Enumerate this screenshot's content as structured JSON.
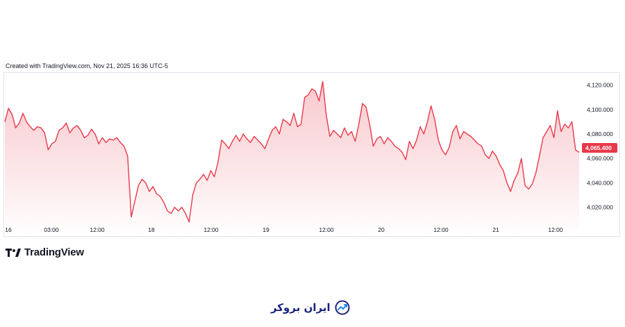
{
  "caption": "Created with TradingView.com, Nov 21, 2025 16:36 UTC-5",
  "brand": {
    "name": "TradingView"
  },
  "footer": {
    "logo_text": "ایران بروکر",
    "icon": "trend-chart-icon"
  },
  "chart_data": {
    "type": "area",
    "title": "",
    "xlabel": "",
    "ylabel": "",
    "x_ticks": [
      "16",
      "03:00",
      "12:00",
      "18",
      "12:00",
      "19",
      "12:00",
      "20",
      "12:00",
      "21",
      "12:00"
    ],
    "y_ticks": [
      "4,020.000",
      "4,040.000",
      "4,060.000",
      "4,080.000",
      "4,100.000",
      "4,120.000"
    ],
    "ylim": [
      4009,
      4130
    ],
    "last_price_label": "4,065.400",
    "grid": false,
    "colors": {
      "line": "#e8394a",
      "fill_top": "#f7c3c8",
      "fill_bottom": "#ffffff",
      "price_tag": "#e8394a"
    },
    "series": [
      {
        "values": [
          4090,
          4101,
          4096,
          4085,
          4089,
          4097,
          4090,
          4086,
          4083,
          4086,
          4085,
          4081,
          4067,
          4072,
          4074,
          4083,
          4085,
          4089,
          4081,
          4085,
          4087,
          4083,
          4077,
          4079,
          4084,
          4080,
          4072,
          4077,
          4073,
          4076,
          4075,
          4077,
          4073,
          4070,
          4062,
          4012,
          4025,
          4038,
          4043,
          4040,
          4033,
          4037,
          4031,
          4029,
          4024,
          4017,
          4015,
          4020,
          4017,
          4020,
          4015,
          4008,
          4030,
          4040,
          4043,
          4047,
          4042,
          4050,
          4045,
          4057,
          4075,
          4072,
          4068,
          4074,
          4079,
          4074,
          4080,
          4076,
          4073,
          4078,
          4075,
          4072,
          4068,
          4076,
          4083,
          4086,
          4080,
          4092,
          4090,
          4087,
          4097,
          4086,
          4088,
          4110,
          4112,
          4117,
          4115,
          4107,
          4123,
          4095,
          4078,
          4083,
          4080,
          4077,
          4085,
          4079,
          4082,
          4074,
          4088,
          4105,
          4102,
          4088,
          4070,
          4076,
          4078,
          4072,
          4077,
          4074,
          4070,
          4068,
          4065,
          4059,
          4074,
          4068,
          4075,
          4086,
          4080,
          4090,
          4103,
          4092,
          4075,
          4067,
          4063,
          4069,
          4082,
          4087,
          4076,
          4082,
          4080,
          4078,
          4075,
          4072,
          4070,
          4063,
          4060,
          4066,
          4062,
          4055,
          4050,
          4040,
          4033,
          4042,
          4048,
          4060,
          4038,
          4035,
          4039,
          4048,
          4062,
          4077,
          4082,
          4087,
          4077,
          4099,
          4082,
          4088,
          4085,
          4090,
          4067,
          4065
        ]
      }
    ]
  }
}
